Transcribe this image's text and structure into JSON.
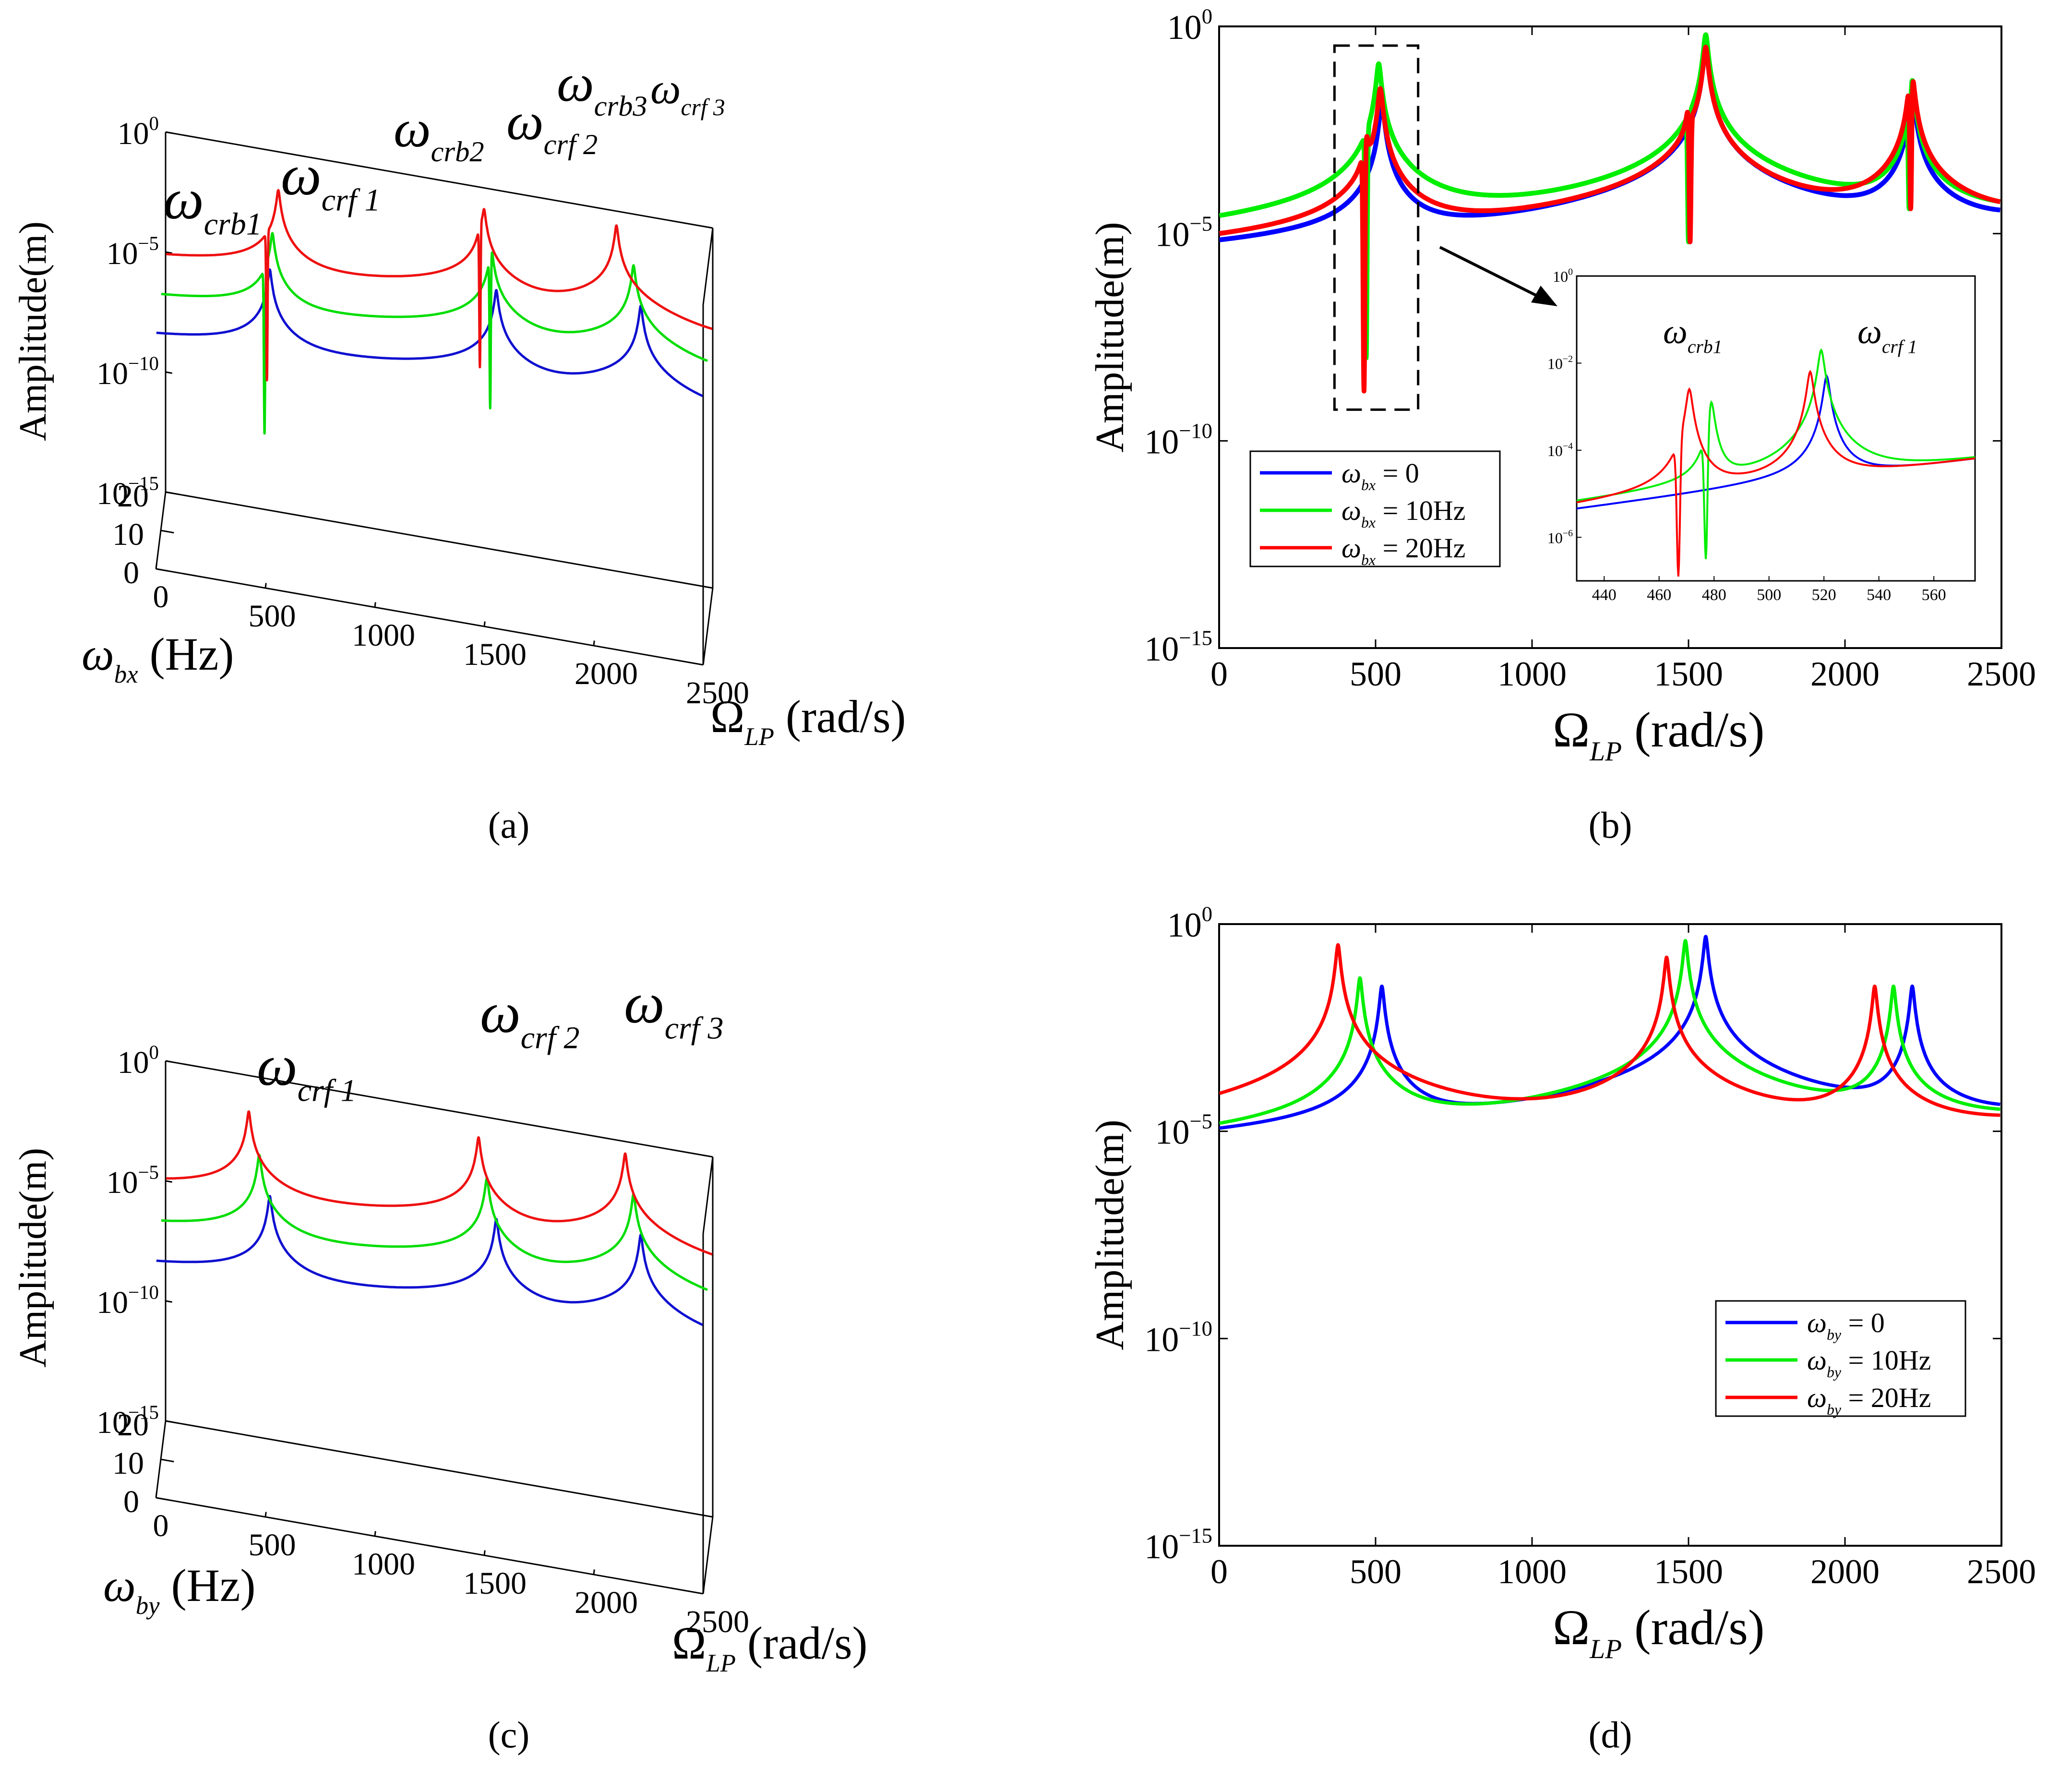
{
  "chart_data": [
    {
      "id": "a",
      "panel_label": "(a)",
      "type": "line",
      "projection": "3d",
      "ylabel": "Amplitude(m)",
      "yscale": "log",
      "ylim": [
        1e-15,
        1
      ],
      "yticks": [
        "10^0",
        "10^-5",
        "10^-10",
        "10^-15"
      ],
      "xlabel_main": "Ω",
      "xlabel_sub": "LP",
      "xlabel_unit": "(rad/s)",
      "xlim": [
        0,
        2500
      ],
      "xticks": [
        "0",
        "500",
        "1000",
        "1500",
        "2000",
        "2500"
      ],
      "zlabel_main": "ω",
      "zlabel_sub": "bx",
      "zlabel_unit": "(Hz)",
      "zticks": [
        "0",
        "10",
        "20"
      ],
      "annotations": [
        {
          "main": "ω",
          "sub": "crb1"
        },
        {
          "main": "ω",
          "sub": "crf 1"
        },
        {
          "main": "ω",
          "sub": "crb2"
        },
        {
          "main": "ω",
          "sub": "crf 2"
        },
        {
          "main": "ω",
          "sub": "crb3"
        },
        {
          "main": "ω",
          "sub": "crf 3"
        }
      ],
      "series": [
        {
          "z": 0,
          "color": "#1010d0",
          "start_log": -13,
          "low_f": 300,
          "low_log": -8.5,
          "end_log": -4,
          "peaks": [
            {
              "x": 520,
              "log": -1.7,
              "base": -8.1
            },
            {
              "x": 1555,
              "log": -0.9,
              "base": -7
            },
            {
              "x": 2215,
              "log": -0.5,
              "base": -5.7
            }
          ],
          "antipeaks": []
        },
        {
          "z": 10,
          "color": "#00dd00",
          "start_log": -13,
          "low_f": 300,
          "low_log": -8.5,
          "end_log": -4,
          "peaks": [
            {
              "x": 479,
              "log": -4.8,
              "base": -8.3
            },
            {
              "x": 510,
              "log": -1.8,
              "base": -7.9
            },
            {
              "x": 1510,
              "log": -0.8,
              "base": -6.9
            },
            {
              "x": 2160,
              "log": -0.5,
              "base": -5.7
            }
          ],
          "antipeaks": [
            {
              "x": 474,
              "log": -10.2
            },
            {
              "x": 1505,
              "log": -7.5
            }
          ]
        },
        {
          "z": 20,
          "color": "#ee1010",
          "start_log": -13,
          "low_f": 300,
          "low_log": -8.5,
          "end_log": -4,
          "peaks": [
            {
              "x": 470,
              "log": -4.4,
              "base": -8.3
            },
            {
              "x": 515,
              "log": -1.6,
              "base": -7.9
            },
            {
              "x": 1440,
              "log": -1.5,
              "base": -7
            },
            {
              "x": 1455,
              "log": -0.9,
              "base": -6.9
            },
            {
              "x": 2060,
              "log": -0.6,
              "base": -5.8
            }
          ],
          "antipeaks": [
            {
              "x": 463,
              "log": -9.6
            },
            {
              "x": 1436,
              "log": -7.5
            }
          ]
        }
      ]
    },
    {
      "id": "b",
      "panel_label": "(b)",
      "type": "line",
      "ylabel": "Amplitude(m)",
      "yscale": "log",
      "ylim": [
        1e-15,
        1
      ],
      "yticks": [
        "10^0",
        "10^-5",
        "10^-10",
        "10^-15"
      ],
      "xlabel_main": "Ω",
      "xlabel_sub": "LP",
      "xlabel_unit": "(rad/s)",
      "xlim": [
        0,
        2500
      ],
      "xticks": [
        "0",
        "500",
        "1000",
        "1500",
        "2000",
        "2500"
      ],
      "legend": {
        "position": "lower-left",
        "entries": [
          {
            "main": "ω",
            "sub": "bx",
            "text": "= 0",
            "color": "#0000ff"
          },
          {
            "main": "ω",
            "sub": "bx",
            "text": "= 10Hz",
            "color": "#00ee00"
          },
          {
            "main": "ω",
            "sub": "bx",
            "text": "= 20Hz",
            "color": "#ff0000"
          }
        ]
      },
      "zoom_box": {
        "xlim": [
          430,
          590
        ],
        "ylim_log": [
          -8.9,
          0
        ]
      },
      "series": [
        {
          "color": "#0000ff",
          "peaks": [
            {
              "x": 520,
              "log": -1.8
            },
            {
              "x": 1555,
              "log": -0.5
            },
            {
              "x": 2215,
              "log": -1.5
            }
          ],
          "antipeaks": []
        },
        {
          "color": "#00ee00",
          "peaks": [
            {
              "x": 479,
              "log": -4.8
            },
            {
              "x": 510,
              "log": -0.9
            },
            {
              "x": 1555,
              "log": -0.2
            },
            {
              "x": 2215,
              "log": -1.3
            }
          ],
          "antipeaks": [
            {
              "x": 470,
              "log": -8
            },
            {
              "x": 1500,
              "log": -5.2
            },
            {
              "x": 2205,
              "log": -4.4
            }
          ]
        },
        {
          "color": "#ff0000",
          "peaks": [
            {
              "x": 470,
              "log": -2.7
            },
            {
              "x": 515,
              "log": -1.5
            },
            {
              "x": 1500,
              "log": -2.1
            },
            {
              "x": 1555,
              "log": -0.5
            },
            {
              "x": 2205,
              "log": -1.8
            },
            {
              "x": 2215,
              "log": -1.2
            }
          ],
          "antipeaks": [
            {
              "x": 463,
              "log": -8.8
            },
            {
              "x": 1505,
              "log": -5.2
            },
            {
              "x": 2210,
              "log": -4.4
            }
          ]
        }
      ],
      "inset": {
        "xlim": [
          430,
          575
        ],
        "ylim_log": [
          -7,
          0
        ],
        "xticks": [
          "440",
          "460",
          "480",
          "500",
          "520",
          "540",
          "560"
        ],
        "yticks": [
          "10^0",
          "10^-2",
          "10^-4",
          "10^-6"
        ],
        "annotations": [
          {
            "main": "ω",
            "sub": "crb1"
          },
          {
            "main": "ω",
            "sub": "crf 1"
          }
        ],
        "series": [
          {
            "color": "#0000ff",
            "peaks": [
              {
                "x": 521,
                "log": -2.3
              }
            ],
            "antipeaks": []
          },
          {
            "color": "#00ee00",
            "peaks": [
              {
                "x": 479,
                "log": -2.9
              },
              {
                "x": 519,
                "log": -1.7
              }
            ],
            "antipeaks": [
              {
                "x": 477,
                "log": -6.5
              }
            ]
          },
          {
            "color": "#ff0000",
            "peaks": [
              {
                "x": 471,
                "log": -2.6
              },
              {
                "x": 515,
                "log": -2.2
              }
            ],
            "antipeaks": [
              {
                "x": 467,
                "log": -6.9
              }
            ]
          }
        ]
      }
    },
    {
      "id": "c",
      "panel_label": "(c)",
      "type": "line",
      "projection": "3d",
      "ylabel": "Amplitude(m)",
      "yscale": "log",
      "ylim": [
        1e-15,
        1
      ],
      "yticks": [
        "10^0",
        "10^-5",
        "10^-10",
        "10^-15"
      ],
      "xlabel_main": "Ω",
      "xlabel_sub": "LP",
      "xlabel_unit": "(rad/s)",
      "xlim": [
        0,
        2500
      ],
      "xticks": [
        "0",
        "500",
        "1000",
        "1500",
        "2000",
        "2500"
      ],
      "zlabel_main": "ω",
      "zlabel_sub": "by",
      "zlabel_unit": "(Hz)",
      "zticks": [
        "0",
        "10",
        "20"
      ],
      "annotations": [
        {
          "main": "ω",
          "sub": "crf 1"
        },
        {
          "main": "ω",
          "sub": "crf 2"
        },
        {
          "main": "ω",
          "sub": "crf 3"
        }
      ],
      "series": [
        {
          "z": 0,
          "color": "#1010d0",
          "start_log": -13,
          "low_f": 300,
          "low_log": -8.5,
          "end_log": -4,
          "peaks": [
            {
              "x": 520,
              "log": -1.6,
              "base": -8.1
            },
            {
              "x": 1555,
              "log": -0.9,
              "base": -7
            },
            {
              "x": 2215,
              "log": -0.5,
              "base": -5.7
            }
          ],
          "antipeaks": []
        },
        {
          "z": 10,
          "color": "#00dd00",
          "start_log": -11,
          "low_f": 300,
          "low_log": -8,
          "end_log": -4,
          "peaks": [
            {
              "x": 450,
              "log": -1.6,
              "base": -7.9
            },
            {
              "x": 1490,
              "log": -0.9,
              "base": -7
            },
            {
              "x": 2160,
              "log": -0.5,
              "base": -5.7
            }
          ],
          "antipeaks": []
        },
        {
          "z": 20,
          "color": "#ee1010",
          "start_log": -10,
          "low_f": 300,
          "low_log": -7.5,
          "end_log": -4,
          "peaks": [
            {
              "x": 380,
              "log": -1.5,
              "base": -7.4
            },
            {
              "x": 1430,
              "log": -0.9,
              "base": -6.8
            },
            {
              "x": 2100,
              "log": -0.5,
              "base": -5.6
            }
          ],
          "antipeaks": []
        }
      ]
    },
    {
      "id": "d",
      "panel_label": "(d)",
      "type": "line",
      "ylabel": "Amplitude(m)",
      "yscale": "log",
      "ylim": [
        1e-15,
        1
      ],
      "yticks": [
        "10^0",
        "10^-5",
        "10^-10",
        "10^-15"
      ],
      "xlabel_main": "Ω",
      "xlabel_sub": "LP",
      "xlabel_unit": "(rad/s)",
      "xlim": [
        0,
        2500
      ],
      "xticks": [
        "0",
        "500",
        "1000",
        "1500",
        "2000",
        "2500"
      ],
      "legend": {
        "position": "lower-right",
        "entries": [
          {
            "main": "ω",
            "sub": "by",
            "text": "= 0",
            "color": "#0000ff"
          },
          {
            "main": "ω",
            "sub": "by",
            "text": "= 10Hz",
            "color": "#00ee00"
          },
          {
            "main": "ω",
            "sub": "by",
            "text": "= 20Hz",
            "color": "#ff0000"
          }
        ]
      },
      "series": [
        {
          "color": "#0000ff",
          "start_log": -13,
          "low_log": -8.9,
          "peaks": [
            {
              "x": 520,
              "log": -1.5
            },
            {
              "x": 1555,
              "log": -0.3
            },
            {
              "x": 2215,
              "log": -1.5
            }
          ],
          "antipeaks": []
        },
        {
          "color": "#00ee00",
          "start_log": -8.2,
          "low_log": -7.3,
          "peaks": [
            {
              "x": 450,
              "log": -1.3
            },
            {
              "x": 1490,
              "log": -0.4
            },
            {
              "x": 2155,
              "log": -1.5
            }
          ],
          "antipeaks": []
        },
        {
          "color": "#ff0000",
          "start_log": -7.6,
          "low_log": -6.8,
          "peaks": [
            {
              "x": 380,
              "log": -0.5
            },
            {
              "x": 1430,
              "log": -0.8
            },
            {
              "x": 2095,
              "log": -1.5
            }
          ],
          "antipeaks": []
        }
      ]
    }
  ]
}
